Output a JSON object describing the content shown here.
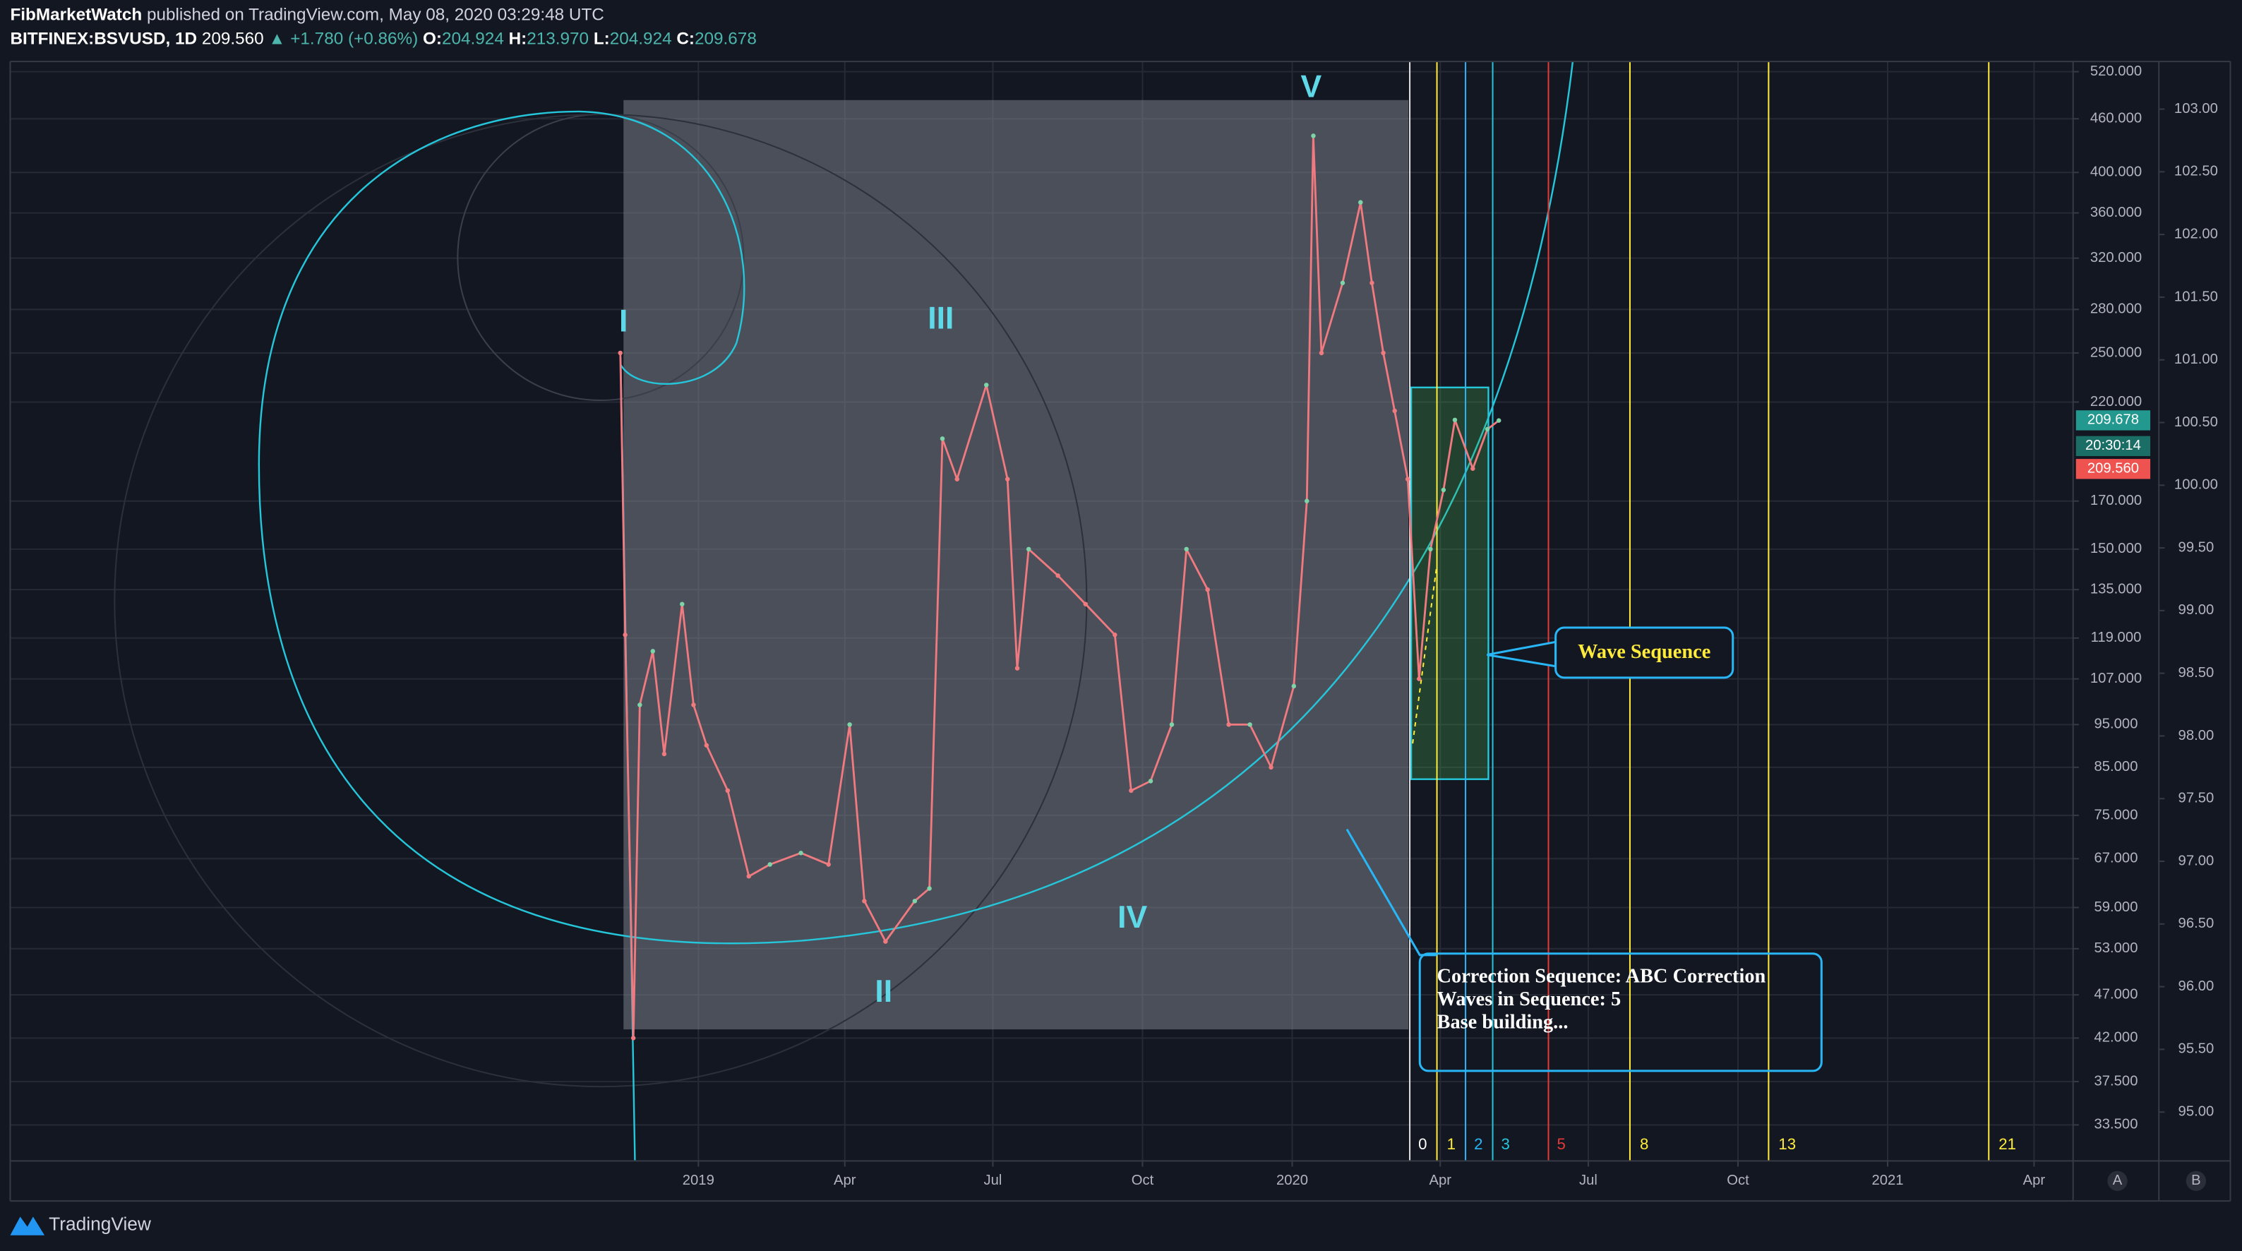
{
  "header": {
    "author": "FibMarketWatch",
    "published": "published on TradingView.com, May 08, 2020 03:29:48 UTC",
    "symbol": "BITFINEX:BSVUSD, 1D",
    "last": "209.560",
    "change": "▲ +1.780 (+0.86%)",
    "o_label": "O:",
    "o": "204.924",
    "h_label": "H:",
    "h": "213.970",
    "l_label": "L:",
    "l": "204.924",
    "c_label": "C:",
    "c": "209.678"
  },
  "chart_data": {
    "type": "line",
    "color": "#ef7a80",
    "log_scale": true,
    "grid": true,
    "x": [
      "2018-11-14",
      "2018-11-17",
      "2018-11-22",
      "2018-11-26",
      "2018-12-04",
      "2018-12-11",
      "2018-12-22",
      "2018-12-29",
      "2019-01-06",
      "2019-01-19",
      "2019-02-01",
      "2019-02-14",
      "2019-03-05",
      "2019-03-22",
      "2019-04-04",
      "2019-04-13",
      "2019-04-26",
      "2019-05-14",
      "2019-05-23",
      "2019-05-31",
      "2019-06-09",
      "2019-06-27",
      "2019-07-10",
      "2019-07-16",
      "2019-07-23",
      "2019-08-10",
      "2019-08-27",
      "2019-09-14",
      "2019-09-24",
      "2019-10-06",
      "2019-10-19",
      "2019-10-28",
      "2019-11-10",
      "2019-11-23",
      "2019-12-06",
      "2019-12-19",
      "2020-01-02",
      "2020-01-10",
      "2020-01-14",
      "2020-01-19",
      "2020-02-01",
      "2020-02-12",
      "2020-02-19",
      "2020-02-26",
      "2020-03-04",
      "2020-03-12",
      "2020-03-19",
      "2020-03-26",
      "2020-04-03",
      "2020-04-10",
      "2020-04-21",
      "2020-04-30",
      "2020-05-07"
    ],
    "values": [
      250,
      120,
      42,
      100,
      115,
      88,
      130,
      100,
      90,
      80,
      64,
      66,
      68,
      66,
      95,
      60,
      54,
      60,
      62,
      200,
      180,
      230,
      180,
      110,
      150,
      140,
      130,
      120,
      80,
      82,
      95,
      150,
      135,
      95,
      95,
      85,
      105,
      170,
      440,
      250,
      300,
      370,
      300,
      250,
      215,
      180,
      107,
      150,
      175,
      210,
      185,
      205,
      209.678
    ],
    "xlim": [
      "2017-11-04",
      "2021-04-25"
    ],
    "xticks": [
      {
        "value": "2019-01-01",
        "label": "2019"
      },
      {
        "value": "2019-04-01",
        "label": "Apr"
      },
      {
        "value": "2019-07-01",
        "label": "Jul"
      },
      {
        "value": "2019-10-01",
        "label": "Oct"
      },
      {
        "value": "2020-01-01",
        "label": "2020"
      },
      {
        "value": "2020-04-01",
        "label": "Apr"
      },
      {
        "value": "2020-07-01",
        "label": "Jul"
      },
      {
        "value": "2020-10-01",
        "label": "Oct"
      },
      {
        "value": "2021-01-01",
        "label": "2021"
      },
      {
        "value": "2021-04-01",
        "label": "Apr"
      }
    ],
    "ylim": [
      30.5,
      534
    ],
    "yticks": [
      {
        "value": 520,
        "label": "520.000"
      },
      {
        "value": 460,
        "label": "460.000"
      },
      {
        "value": 400,
        "label": "400.000"
      },
      {
        "value": 360,
        "label": "360.000"
      },
      {
        "value": 320,
        "label": "320.000"
      },
      {
        "value": 280,
        "label": "280.000"
      },
      {
        "value": 250,
        "label": "250.000"
      },
      {
        "value": 220,
        "label": "220.000"
      },
      {
        "value": 170,
        "label": "170.000"
      },
      {
        "value": 150,
        "label": "150.000"
      },
      {
        "value": 135,
        "label": "135.000"
      },
      {
        "value": 119,
        "label": "119.000"
      },
      {
        "value": 107,
        "label": "107.000"
      },
      {
        "value": 95,
        "label": "95.000"
      },
      {
        "value": 85,
        "label": "85.000"
      },
      {
        "value": 75,
        "label": "75.000"
      },
      {
        "value": 67,
        "label": "67.000"
      },
      {
        "value": 59,
        "label": "59.000"
      },
      {
        "value": 53,
        "label": "53.000"
      },
      {
        "value": 47,
        "label": "47.000"
      },
      {
        "value": 42,
        "label": "42.000"
      },
      {
        "value": 37.5,
        "label": "37.500"
      },
      {
        "value": 33.5,
        "label": "33.500"
      }
    ],
    "y2lim": [
      94.61,
      103.38
    ],
    "y2ticks": [
      {
        "value": 103,
        "label": "103.00"
      },
      {
        "value": 102.5,
        "label": "102.50"
      },
      {
        "value": 102,
        "label": "102.00"
      },
      {
        "value": 101.5,
        "label": "101.50"
      },
      {
        "value": 101,
        "label": "101.00"
      },
      {
        "value": 100.5,
        "label": "100.50"
      },
      {
        "value": 100,
        "label": "100.00"
      },
      {
        "value": 99.5,
        "label": "99.50"
      },
      {
        "value": 99,
        "label": "99.00"
      },
      {
        "value": 98.5,
        "label": "98.50"
      },
      {
        "value": 98,
        "label": "98.00"
      },
      {
        "value": 97.5,
        "label": "97.50"
      },
      {
        "value": 97,
        "label": "97.00"
      },
      {
        "value": 96.5,
        "label": "96.50"
      },
      {
        "value": 96,
        "label": "96.00"
      },
      {
        "value": 95.5,
        "label": "95.50"
      },
      {
        "value": 95,
        "label": "95.00"
      }
    ]
  },
  "waves": [
    "I",
    "II",
    "III",
    "IV",
    "V"
  ],
  "fib_time_zones": [
    "0",
    "1",
    "2",
    "3",
    "5",
    "8",
    "13",
    "21"
  ],
  "annotations": {
    "wave_sequence": "Wave Sequence",
    "correction": [
      "Correction Sequence: ABC Correction",
      "Waves in Sequence: 5",
      "Base building..."
    ]
  },
  "price_labels": {
    "close": "209.678",
    "countdown": "20:30:14",
    "bid": "209.560"
  },
  "footer": {
    "brand": "TradingView",
    "button_a": "A",
    "button_b": "B"
  }
}
